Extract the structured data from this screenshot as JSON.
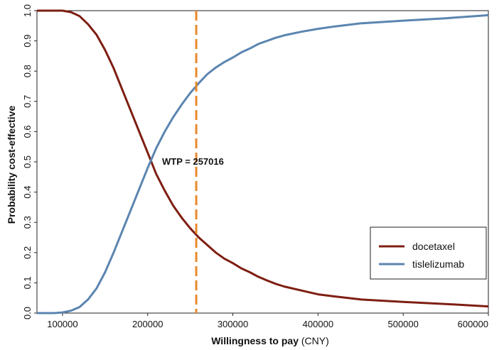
{
  "chart_data": {
    "type": "line",
    "xlabel": "Willingness to pay",
    "xlabel_unit": "(CNY)",
    "ylabel": "Probability cost-effective",
    "xlim": [
      70000,
      600000
    ],
    "ylim": [
      0,
      1
    ],
    "x_ticks": [
      100000,
      200000,
      300000,
      400000,
      500000,
      600000
    ],
    "x_tick_labels": [
      "100000",
      "200000",
      "300000",
      "400000",
      "500000",
      "600000"
    ],
    "y_ticks": [
      0,
      0.1,
      0.2,
      0.3,
      0.4,
      0.5,
      0.6,
      0.7,
      0.8,
      0.9,
      1
    ],
    "y_tick_labels": [
      "0.0",
      "0.1",
      "0.2",
      "0.3",
      "0.4",
      "0.5",
      "0.6",
      "0.7",
      "0.8",
      "0.9",
      "1.0"
    ],
    "grid": false,
    "legend_position": "bottom-right",
    "wtp_line": {
      "x": 257016,
      "label": "WTP = 257016",
      "color": "#E8892B"
    },
    "series": [
      {
        "name": "docetaxel",
        "color": "#7E1E12",
        "x": [
          70000,
          90000,
          100000,
          110000,
          120000,
          130000,
          140000,
          150000,
          160000,
          170000,
          180000,
          190000,
          200000,
          210000,
          220000,
          230000,
          240000,
          250000,
          260000,
          270000,
          280000,
          290000,
          300000,
          310000,
          320000,
          330000,
          340000,
          350000,
          360000,
          380000,
          400000,
          420000,
          450000,
          500000,
          550000,
          600000
        ],
        "y": [
          1.0,
          1.0,
          1.0,
          0.995,
          0.982,
          0.955,
          0.92,
          0.87,
          0.81,
          0.74,
          0.67,
          0.6,
          0.53,
          0.46,
          0.405,
          0.355,
          0.315,
          0.28,
          0.25,
          0.225,
          0.2,
          0.18,
          0.165,
          0.148,
          0.135,
          0.12,
          0.108,
          0.097,
          0.088,
          0.075,
          0.062,
          0.055,
          0.045,
          0.037,
          0.03,
          0.022
        ]
      },
      {
        "name": "tislelizumab",
        "color": "#5B85B0",
        "x": [
          70000,
          90000,
          100000,
          110000,
          120000,
          130000,
          140000,
          150000,
          160000,
          170000,
          180000,
          190000,
          200000,
          210000,
          220000,
          230000,
          240000,
          250000,
          260000,
          270000,
          280000,
          290000,
          300000,
          310000,
          320000,
          330000,
          340000,
          350000,
          360000,
          380000,
          400000,
          420000,
          450000,
          500000,
          550000,
          600000
        ],
        "y": [
          0.0,
          0.0,
          0.002,
          0.008,
          0.02,
          0.045,
          0.082,
          0.135,
          0.2,
          0.27,
          0.34,
          0.41,
          0.48,
          0.545,
          0.6,
          0.648,
          0.69,
          0.728,
          0.76,
          0.79,
          0.812,
          0.83,
          0.845,
          0.862,
          0.875,
          0.89,
          0.9,
          0.91,
          0.918,
          0.93,
          0.94,
          0.948,
          0.958,
          0.967,
          0.975,
          0.985
        ]
      }
    ]
  }
}
